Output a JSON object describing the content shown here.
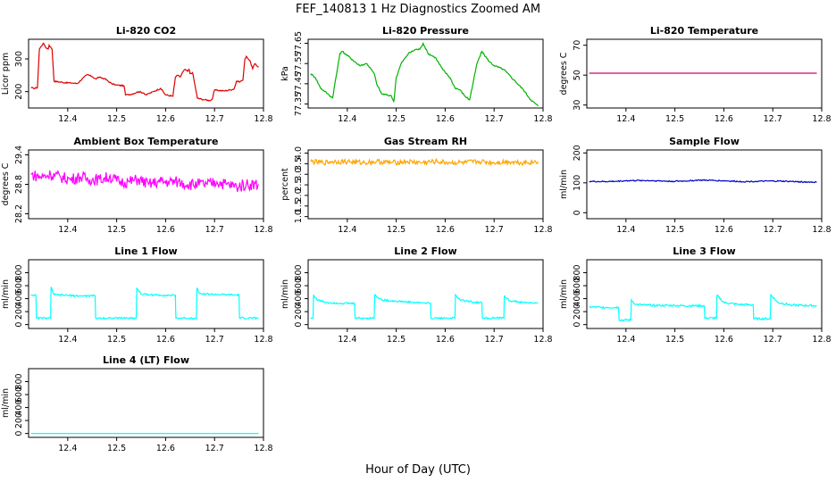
{
  "figure": {
    "title": "FEF_140813  1 Hz Diagnostics Zoomed AM",
    "xlabel": "Hour of Day (UTC)"
  },
  "chart_data": [
    {
      "type": "line",
      "title": "Li-820 CO2",
      "ylabel": "Licor ppm",
      "color": "#dd0000",
      "xlim": [
        12.32,
        12.8
      ],
      "x_ticks": [
        "12.4",
        "12.5",
        "12.6",
        "12.7",
        "12.8"
      ],
      "y_ticks": [
        "200",
        "300"
      ],
      "ylim": [
        150,
        360
      ],
      "series": [
        {
          "x": [
            12.325,
            12.33,
            12.338,
            12.342,
            12.35,
            12.355,
            12.36,
            12.362,
            12.368,
            12.372,
            12.39,
            12.41,
            12.42,
            12.43,
            12.44,
            12.45,
            12.458,
            12.462,
            12.475,
            12.49,
            12.495,
            12.5,
            12.515,
            12.518,
            12.53,
            12.545,
            12.555,
            12.56,
            12.575,
            12.59,
            12.6,
            12.615,
            12.62,
            12.625,
            12.63,
            12.635,
            12.64,
            12.645,
            12.648,
            12.65,
            12.655,
            12.665,
            12.68,
            12.69,
            12.695,
            12.7,
            12.72,
            12.74,
            12.745,
            12.75,
            12.758,
            12.762,
            12.765,
            12.772,
            12.778,
            12.782,
            12.79
          ],
          "y": [
            212,
            210,
            212,
            330,
            348,
            335,
            330,
            342,
            330,
            232,
            228,
            226,
            225,
            240,
            252,
            246,
            238,
            244,
            240,
            224,
            222,
            220,
            218,
            190,
            192,
            200,
            196,
            190,
            200,
            210,
            190,
            186,
            245,
            250,
            245,
            260,
            268,
            262,
            268,
            255,
            258,
            180,
            175,
            173,
            176,
            205,
            202,
            208,
            232,
            230,
            235,
            300,
            308,
            295,
            270,
            285,
            275
          ]
        }
      ]
    },
    {
      "type": "line",
      "title": "Li-820 Pressure",
      "ylabel": "kPa",
      "color": "#00b300",
      "xlim": [
        12.32,
        12.8
      ],
      "x_ticks": [
        "12.4",
        "12.5",
        "12.6",
        "12.7",
        "12.8"
      ],
      "y_ticks": [
        "77.35",
        "77.45",
        "77.55",
        "77.65"
      ],
      "ylim": [
        77.33,
        77.67
      ],
      "series": [
        {
          "x": [
            12.325,
            12.335,
            12.345,
            12.36,
            12.37,
            12.385,
            12.39,
            12.41,
            12.425,
            12.44,
            12.455,
            12.46,
            12.47,
            12.49,
            12.495,
            12.5,
            12.51,
            12.525,
            12.54,
            12.548,
            12.555,
            12.565,
            12.58,
            12.595,
            12.61,
            12.62,
            12.63,
            12.64,
            12.65,
            12.665,
            12.675,
            12.69,
            12.7,
            12.72,
            12.74,
            12.76,
            12.775,
            12.79
          ],
          "y": [
            77.5,
            77.48,
            77.43,
            77.4,
            77.38,
            77.6,
            77.61,
            77.57,
            77.54,
            77.55,
            77.5,
            77.45,
            77.4,
            77.39,
            77.36,
            77.48,
            77.55,
            77.6,
            77.62,
            77.62,
            77.65,
            77.6,
            77.58,
            77.52,
            77.48,
            77.43,
            77.42,
            77.39,
            77.37,
            77.55,
            77.61,
            77.56,
            77.54,
            77.52,
            77.47,
            77.42,
            77.37,
            77.34
          ]
        }
      ]
    },
    {
      "type": "line",
      "title": "Li-820 Temperature",
      "ylabel": "degrees C",
      "color": "#d4006a",
      "xlim": [
        12.32,
        12.8
      ],
      "x_ticks": [
        "12.4",
        "12.5",
        "12.6",
        "12.7",
        "12.8"
      ],
      "y_ticks": [
        "30",
        "50",
        "70"
      ],
      "ylim": [
        28,
        74
      ],
      "series": [
        {
          "x": [
            12.325,
            12.79
          ],
          "y": [
            51.3,
            51.3
          ]
        }
      ]
    },
    {
      "type": "line",
      "title": "Ambient Box Temperature",
      "ylabel": "degrees C",
      "color": "#ff00ff",
      "xlim": [
        12.32,
        12.8
      ],
      "x_ticks": [
        "12.4",
        "12.5",
        "12.6",
        "12.7",
        "12.8"
      ],
      "y_ticks": [
        "28.2",
        "28.8",
        "29.4"
      ],
      "ylim": [
        28.1,
        29.5
      ],
      "series": [
        {
          "x": [
            12.325,
            12.345,
            12.365,
            12.385,
            12.405,
            12.425,
            12.445,
            12.465,
            12.485,
            12.505,
            12.525,
            12.545,
            12.565,
            12.585,
            12.605,
            12.625,
            12.645,
            12.665,
            12.685,
            12.705,
            12.725,
            12.745,
            12.765,
            12.79
          ],
          "y": [
            29.0,
            28.95,
            29.0,
            28.95,
            28.9,
            28.95,
            28.9,
            28.9,
            28.95,
            28.85,
            28.85,
            28.9,
            28.8,
            28.85,
            28.85,
            28.85,
            28.8,
            28.8,
            28.8,
            28.85,
            28.8,
            28.75,
            28.8,
            28.8
          ]
        }
      ]
    },
    {
      "type": "line",
      "title": "Gas Stream RH",
      "ylabel": "percent",
      "color": "#ffa500",
      "xlim": [
        12.32,
        12.8
      ],
      "x_ticks": [
        "12.4",
        "12.5",
        "12.6",
        "12.7",
        "12.8"
      ],
      "y_ticks": [
        "1.0",
        "1.5",
        "2.0",
        "2.5",
        "3.0",
        "3.5",
        "4.0"
      ],
      "ylim": [
        0.9,
        4.15
      ],
      "series": [
        {
          "x": [
            12.325,
            12.35,
            12.37,
            12.4,
            12.43,
            12.46,
            12.49,
            12.52,
            12.55,
            12.58,
            12.61,
            12.64,
            12.67,
            12.7,
            12.73,
            12.76,
            12.79
          ],
          "y": [
            3.6,
            3.55,
            3.6,
            3.6,
            3.55,
            3.6,
            3.55,
            3.6,
            3.55,
            3.6,
            3.55,
            3.55,
            3.6,
            3.55,
            3.6,
            3.55,
            3.6
          ]
        }
      ]
    },
    {
      "type": "line",
      "title": "Sample Flow",
      "ylabel": "ml/min",
      "color": "#0000cc",
      "xlim": [
        12.32,
        12.8
      ],
      "x_ticks": [
        "12.4",
        "12.5",
        "12.6",
        "12.7",
        "12.8"
      ],
      "y_ticks": [
        "0",
        "100",
        "200"
      ],
      "ylim": [
        -20,
        210
      ],
      "series": [
        {
          "x": [
            12.325,
            12.35,
            12.38,
            12.4,
            12.43,
            12.46,
            12.49,
            12.52,
            12.55,
            12.58,
            12.61,
            12.64,
            12.67,
            12.7,
            12.73,
            12.76,
            12.79
          ],
          "y": [
            105,
            104,
            105,
            107,
            108,
            107,
            105,
            106,
            109,
            108,
            106,
            104,
            105,
            106,
            105,
            103,
            102
          ]
        }
      ]
    },
    {
      "type": "line",
      "title": "Line 1 Flow",
      "ylabel": "ml/min",
      "color": "#00ffff",
      "xlim": [
        12.32,
        12.8
      ],
      "x_ticks": [
        "12.4",
        "12.5",
        "12.6",
        "12.7",
        "12.8"
      ],
      "y_ticks": [
        "0",
        "200",
        "400",
        "600",
        "800"
      ],
      "ylim": [
        -60,
        1000
      ],
      "series": [
        {
          "x": [
            12.325,
            12.335,
            12.336,
            12.365,
            12.366,
            12.372,
            12.4,
            12.43,
            12.456,
            12.457,
            12.54,
            12.541,
            12.55,
            12.58,
            12.62,
            12.621,
            12.663,
            12.664,
            12.67,
            12.7,
            12.725,
            12.75,
            12.751,
            12.79
          ],
          "y": [
            460,
            450,
            100,
            100,
            580,
            460,
            450,
            440,
            445,
            100,
            100,
            560,
            470,
            455,
            450,
            100,
            100,
            560,
            475,
            465,
            460,
            455,
            100,
            100
          ]
        }
      ]
    },
    {
      "type": "line",
      "title": "Line 2 Flow",
      "ylabel": "ml/min",
      "color": "#00ffff",
      "xlim": [
        12.32,
        12.8
      ],
      "x_ticks": [
        "12.4",
        "12.5",
        "12.6",
        "12.7",
        "12.8"
      ],
      "y_ticks": [
        "0",
        "200",
        "400",
        "600",
        "800"
      ],
      "ylim": [
        -60,
        1000
      ],
      "series": [
        {
          "x": [
            12.325,
            12.33,
            12.331,
            12.338,
            12.36,
            12.385,
            12.415,
            12.416,
            12.455,
            12.456,
            12.47,
            12.5,
            12.53,
            12.57,
            12.571,
            12.62,
            12.621,
            12.63,
            12.66,
            12.675,
            12.676,
            12.72,
            12.721,
            12.73,
            12.76,
            12.79
          ],
          "y": [
            100,
            100,
            460,
            380,
            340,
            330,
            325,
            100,
            100,
            460,
            380,
            360,
            345,
            330,
            100,
            100,
            460,
            380,
            345,
            335,
            100,
            100,
            450,
            370,
            340,
            330
          ]
        }
      ]
    },
    {
      "type": "line",
      "title": "Line 3 Flow",
      "ylabel": "ml/min",
      "color": "#00ffff",
      "xlim": [
        12.32,
        12.8
      ],
      "x_ticks": [
        "12.4",
        "12.5",
        "12.6",
        "12.7",
        "12.8"
      ],
      "y_ticks": [
        "0",
        "200",
        "400",
        "600",
        "800"
      ],
      "ylim": [
        -60,
        1000
      ],
      "series": [
        {
          "x": [
            12.325,
            12.35,
            12.385,
            12.386,
            12.41,
            12.411,
            12.42,
            12.44,
            12.47,
            12.5,
            12.52,
            12.56,
            12.561,
            12.585,
            12.586,
            12.6,
            12.63,
            12.66,
            12.661,
            12.695,
            12.696,
            12.71,
            12.74,
            12.79
          ],
          "y": [
            270,
            265,
            265,
            70,
            70,
            380,
            310,
            300,
            295,
            295,
            290,
            290,
            100,
            100,
            450,
            340,
            310,
            305,
            90,
            90,
            460,
            340,
            300,
            290
          ]
        }
      ]
    },
    {
      "type": "line",
      "title": "Line 4 (LT) Flow",
      "ylabel": "ml/min",
      "color": "#00ffff",
      "xlim": [
        12.32,
        12.8
      ],
      "x_ticks": [
        "12.4",
        "12.5",
        "12.6",
        "12.7",
        "12.8"
      ],
      "y_ticks": [
        "0",
        "200",
        "400",
        "600",
        "800"
      ],
      "ylim": [
        -60,
        1000
      ],
      "series": [
        {
          "x": [
            12.325,
            12.79
          ],
          "y": [
            0,
            0
          ]
        }
      ]
    }
  ]
}
